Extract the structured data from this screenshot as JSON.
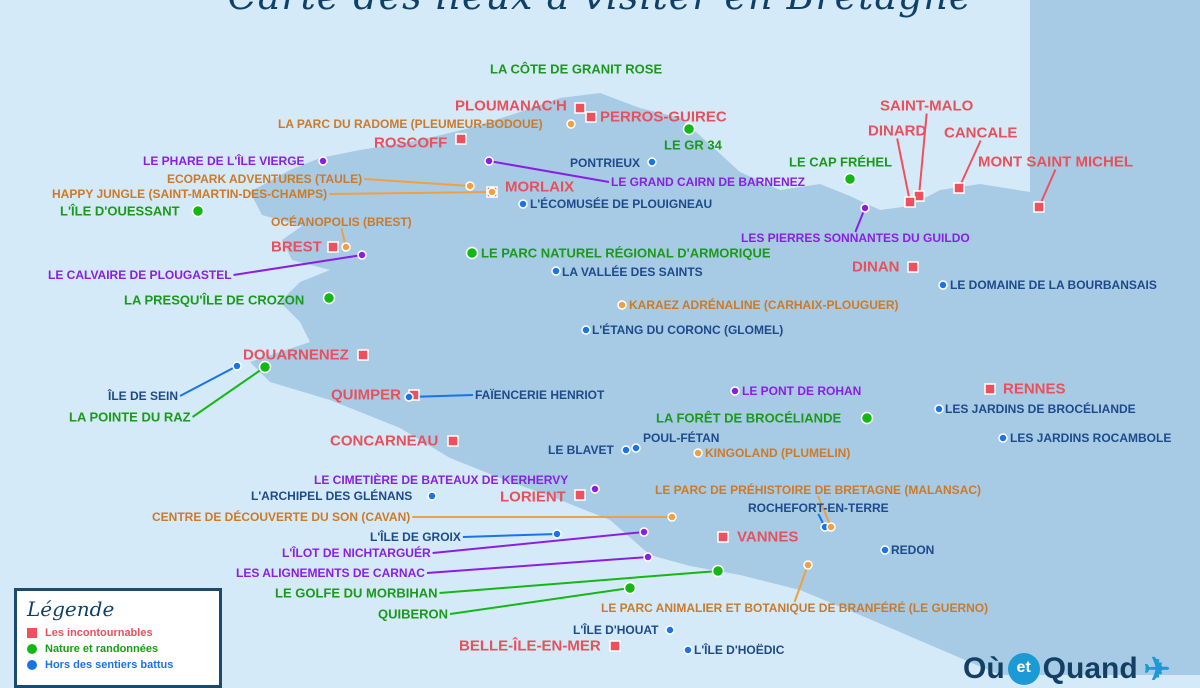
{
  "title": "Carte des lieux à visiter en Bretagne",
  "colors": {
    "sea": "#d4eaf8",
    "land": "#a8cbe5",
    "red": "#f0505d",
    "green": "#14b814",
    "blue": "#1a73e8",
    "orange": "#f0a040",
    "purple": "#8a1ee6"
  },
  "legend": {
    "title": "Légende",
    "items": [
      {
        "label": "Les incontournables",
        "color": "#e8505b",
        "shape": "square"
      },
      {
        "label": "Nature et randonnées",
        "color": "#14b814",
        "shape": "circle"
      },
      {
        "label": "Hors des sentiers battus",
        "color": "#1a73e8",
        "shape": "circle"
      }
    ]
  },
  "places": [
    {
      "name": "PLOUMANAC'H",
      "category": "red"
    },
    {
      "name": "PERROS-GUIREC",
      "category": "red"
    },
    {
      "name": "ROSCOFF",
      "category": "red"
    },
    {
      "name": "MORLAIX",
      "category": "red"
    },
    {
      "name": "BREST",
      "category": "red"
    },
    {
      "name": "DOUARNENEZ",
      "category": "red"
    },
    {
      "name": "QUIMPER",
      "category": "red"
    },
    {
      "name": "CONCARNEAU",
      "category": "red"
    },
    {
      "name": "LORIENT",
      "category": "red"
    },
    {
      "name": "VANNES",
      "category": "red"
    },
    {
      "name": "BELLE-ÎLE-EN-MER",
      "category": "red"
    },
    {
      "name": "SAINT-MALO",
      "category": "red"
    },
    {
      "name": "DINARD",
      "category": "red"
    },
    {
      "name": "CANCALE",
      "category": "red"
    },
    {
      "name": "MONT SAINT MICHEL",
      "category": "red"
    },
    {
      "name": "DINAN",
      "category": "red"
    },
    {
      "name": "RENNES",
      "category": "red"
    },
    {
      "name": "LA CÔTE DE GRANIT ROSE",
      "category": "green"
    },
    {
      "name": "LE GR 34",
      "category": "green"
    },
    {
      "name": "LE CAP FRÉHEL",
      "category": "green"
    },
    {
      "name": "L'ÎLE D'OUESSANT",
      "category": "green"
    },
    {
      "name": "LE PARC NATUREL RÉGIONAL D'ARMORIQUE",
      "category": "green"
    },
    {
      "name": "LA PRESQU'ÎLE DE CROZON",
      "category": "green"
    },
    {
      "name": "LA POINTE DU RAZ",
      "category": "green"
    },
    {
      "name": "LA FORÊT DE BROCÉLIANDE",
      "category": "green"
    },
    {
      "name": "LE GOLFE DU MORBIHAN",
      "category": "green"
    },
    {
      "name": "QUIBERON",
      "category": "green"
    },
    {
      "name": "PONTRIEUX",
      "category": "blue"
    },
    {
      "name": "L'ÉCOMUSÉE DE PLOUIGNEAU",
      "category": "blue"
    },
    {
      "name": "LA VALLÉE DES SAINTS",
      "category": "blue"
    },
    {
      "name": "L'ÉTANG DU CORONC (GLOMEL)",
      "category": "blue"
    },
    {
      "name": "LE DOMAINE DE LA BOURBANSAIS",
      "category": "blue"
    },
    {
      "name": "ÎLE DE SEIN",
      "category": "blue"
    },
    {
      "name": "FAÏENCERIE HENRIOT",
      "category": "blue"
    },
    {
      "name": "LES JARDINS DE BROCÉLIANDE",
      "category": "blue"
    },
    {
      "name": "LES JARDINS ROCAMBOLE",
      "category": "blue"
    },
    {
      "name": "POUL-FÉTAN",
      "category": "blue"
    },
    {
      "name": "LE BLAVET",
      "category": "blue"
    },
    {
      "name": "L'ARCHIPEL DES GLÉNANS",
      "category": "blue"
    },
    {
      "name": "ROCHEFORT-EN-TERRE",
      "category": "blue"
    },
    {
      "name": "L'ÎLE DE GROIX",
      "category": "blue"
    },
    {
      "name": "REDON",
      "category": "blue"
    },
    {
      "name": "L'ÎLE D'HOUAT",
      "category": "blue"
    },
    {
      "name": "L'ÎLE D'HOËDIC",
      "category": "blue"
    },
    {
      "name": "LA PARC DU RADOME (PLEUMEUR-BODOUE)",
      "category": "orange"
    },
    {
      "name": "ECOPARK ADVENTURES (TAULE)",
      "category": "orange"
    },
    {
      "name": "HAPPY JUNGLE (SAINT-MARTIN-DES-CHAMPS)",
      "category": "orange"
    },
    {
      "name": "OCÉANOPOLIS (BREST)",
      "category": "orange"
    },
    {
      "name": "KARAEZ ADRÉNALINE (CARHAIX-PLOUGUER)",
      "category": "orange"
    },
    {
      "name": "KINGOLAND (PLUMELIN)",
      "category": "orange"
    },
    {
      "name": "LE PARC DE PRÉHISTOIRE DE BRETAGNE (MALANSAC)",
      "category": "orange"
    },
    {
      "name": "CENTRE DE DÉCOUVERTE DU SON (CAVAN)",
      "category": "orange"
    },
    {
      "name": "LE PARC ANIMALIER ET BOTANIQUE DE BRANFÉRÉ (LE GUERNO)",
      "category": "orange"
    },
    {
      "name": "LE PHARE DE L'ÎLE VIERGE",
      "category": "purple"
    },
    {
      "name": "LE GRAND CAIRN DE BARNENEZ",
      "category": "purple"
    },
    {
      "name": "LES PIERRES SONNANTES DU GUILDO",
      "category": "purple"
    },
    {
      "name": "LE CALVAIRE DE PLOUGASTEL",
      "category": "purple"
    },
    {
      "name": "LE PONT DE ROHAN",
      "category": "purple"
    },
    {
      "name": "LE CIMETIÈRE DE BATEAUX DE KERHERVY",
      "category": "purple"
    },
    {
      "name": "L'ÎLOT DE NICHTARGUÉR",
      "category": "purple"
    },
    {
      "name": "LES ALIGNEMENTS DE CARNAC",
      "category": "purple"
    }
  ],
  "logo": {
    "part1": "Où",
    "part2": "et",
    "part3": "Quand"
  }
}
